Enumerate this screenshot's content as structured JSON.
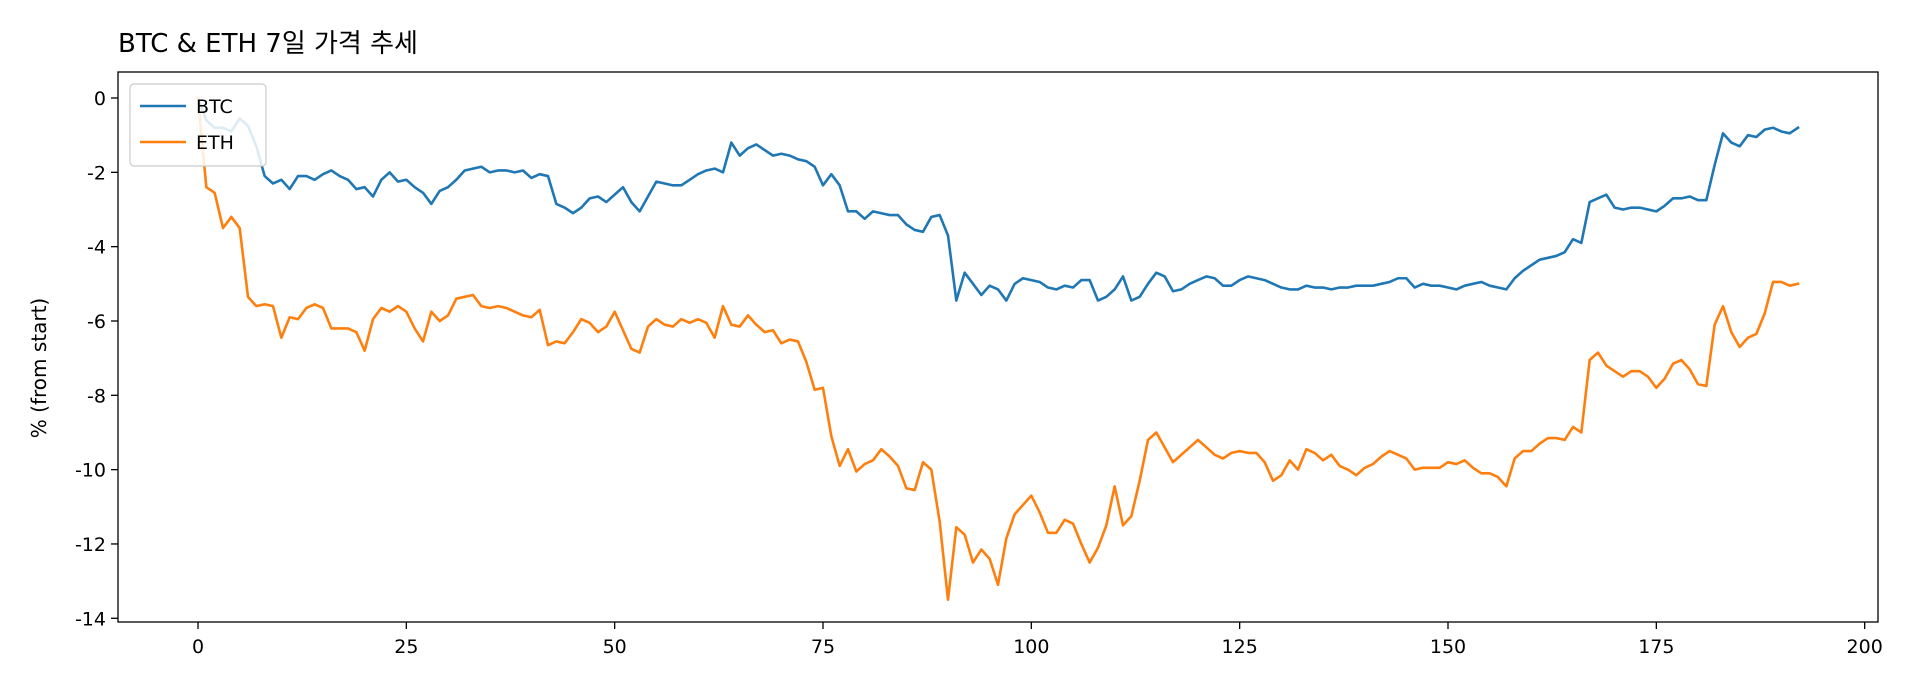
{
  "chart_data": {
    "type": "line",
    "title": "BTC & ETH 7일 가격 추세",
    "xlabel": "",
    "ylabel": "% (from start)",
    "xlim": [
      -9.6,
      201.6
    ],
    "ylim": [
      -14.1,
      0.7
    ],
    "x_ticks": [
      0,
      25,
      50,
      75,
      100,
      125,
      150,
      175,
      200
    ],
    "y_ticks": [
      0,
      -2,
      -4,
      -6,
      -8,
      -10,
      -12,
      -14
    ],
    "grid": false,
    "legend": "top-left",
    "series": [
      {
        "name": "BTC",
        "color": "#1f77b4",
        "values": [
          0,
          -0.6,
          -0.8,
          -0.8,
          -0.9,
          -0.55,
          -0.75,
          -1.3,
          -2.1,
          -2.3,
          -2.2,
          -2.45,
          -2.1,
          -2.1,
          -2.2,
          -2.05,
          -1.95,
          -2.1,
          -2.2,
          -2.45,
          -2.4,
          -2.65,
          -2.2,
          -2.0,
          -2.25,
          -2.2,
          -2.4,
          -2.55,
          -2.85,
          -2.5,
          -2.4,
          -2.2,
          -1.95,
          -1.9,
          -1.85,
          -2.0,
          -1.95,
          -1.95,
          -2.0,
          -1.95,
          -2.15,
          -2.05,
          -2.1,
          -2.85,
          -2.95,
          -3.1,
          -2.95,
          -2.7,
          -2.65,
          -2.8,
          -2.6,
          -2.4,
          -2.8,
          -3.05,
          -2.65,
          -2.25,
          -2.3,
          -2.35,
          -2.35,
          -2.2,
          -2.05,
          -1.95,
          -1.9,
          -2.0,
          -1.2,
          -1.55,
          -1.35,
          -1.25,
          -1.4,
          -1.55,
          -1.5,
          -1.55,
          -1.65,
          -1.7,
          -1.85,
          -2.35,
          -2.05,
          -2.35,
          -3.05,
          -3.05,
          -3.25,
          -3.05,
          -3.1,
          -3.15,
          -3.15,
          -3.4,
          -3.55,
          -3.6,
          -3.2,
          -3.15,
          -3.7,
          -5.45,
          -4.7,
          -5.0,
          -5.3,
          -5.05,
          -5.15,
          -5.45,
          -5.0,
          -4.85,
          -4.9,
          -4.95,
          -5.1,
          -5.15,
          -5.05,
          -5.1,
          -4.9,
          -4.9,
          -5.45,
          -5.35,
          -5.15,
          -4.8,
          -5.45,
          -5.35,
          -5.0,
          -4.7,
          -4.8,
          -5.2,
          -5.15,
          -5.0,
          -4.9,
          -4.8,
          -4.85,
          -5.05,
          -5.05,
          -4.9,
          -4.8,
          -4.85,
          -4.9,
          -5.0,
          -5.1,
          -5.15,
          -5.15,
          -5.05,
          -5.1,
          -5.1,
          -5.15,
          -5.1,
          -5.1,
          -5.05,
          -5.05,
          -5.05,
          -5.0,
          -4.95,
          -4.85,
          -4.85,
          -5.1,
          -5.0,
          -5.05,
          -5.05,
          -5.1,
          -5.15,
          -5.05,
          -5.0,
          -4.95,
          -5.05,
          -5.1,
          -5.15,
          -4.85,
          -4.65,
          -4.5,
          -4.35,
          -4.3,
          -4.25,
          -4.15,
          -3.8,
          -3.9,
          -2.8,
          -2.7,
          -2.6,
          -2.95,
          -3.0,
          -2.95,
          -2.95,
          -3.0,
          -3.05,
          -2.9,
          -2.7,
          -2.7,
          -2.65,
          -2.75,
          -2.75,
          -1.8,
          -0.95,
          -1.2,
          -1.3,
          -1.0,
          -1.05,
          -0.85,
          -0.8,
          -0.9,
          -0.95,
          -0.8
        ]
      },
      {
        "name": "ETH",
        "color": "#ff7f0e",
        "values": [
          0,
          -2.4,
          -2.55,
          -3.5,
          -3.2,
          -3.5,
          -5.35,
          -5.6,
          -5.55,
          -5.6,
          -6.45,
          -5.9,
          -5.95,
          -5.65,
          -5.55,
          -5.65,
          -6.2,
          -6.2,
          -6.2,
          -6.3,
          -6.8,
          -5.95,
          -5.65,
          -5.75,
          -5.6,
          -5.75,
          -6.2,
          -6.55,
          -5.75,
          -6.0,
          -5.85,
          -5.4,
          -5.35,
          -5.3,
          -5.6,
          -5.65,
          -5.6,
          -5.65,
          -5.75,
          -5.85,
          -5.9,
          -5.7,
          -6.65,
          -6.55,
          -6.6,
          -6.3,
          -5.95,
          -6.05,
          -6.3,
          -6.15,
          -5.75,
          -6.25,
          -6.75,
          -6.85,
          -6.15,
          -5.95,
          -6.1,
          -6.15,
          -5.95,
          -6.05,
          -5.95,
          -6.05,
          -6.45,
          -5.6,
          -6.1,
          -6.15,
          -5.85,
          -6.1,
          -6.3,
          -6.25,
          -6.6,
          -6.5,
          -6.55,
          -7.1,
          -7.85,
          -7.8,
          -9.1,
          -9.9,
          -9.45,
          -10.05,
          -9.85,
          -9.75,
          -9.45,
          -9.65,
          -9.9,
          -10.5,
          -10.55,
          -9.8,
          -10.0,
          -11.4,
          -13.5,
          -11.55,
          -11.75,
          -12.5,
          -12.15,
          -12.4,
          -13.1,
          -11.85,
          -11.2,
          -10.95,
          -10.7,
          -11.15,
          -11.7,
          -11.7,
          -11.35,
          -11.45,
          -12.0,
          -12.5,
          -12.1,
          -11.5,
          -10.45,
          -11.5,
          -11.25,
          -10.3,
          -9.2,
          -9.0,
          -9.4,
          -9.8,
          -9.6,
          -9.4,
          -9.2,
          -9.4,
          -9.6,
          -9.7,
          -9.55,
          -9.5,
          -9.55,
          -9.55,
          -9.8,
          -10.3,
          -10.15,
          -9.75,
          -10.0,
          -9.45,
          -9.55,
          -9.75,
          -9.6,
          -9.9,
          -10.0,
          -10.15,
          -9.95,
          -9.85,
          -9.65,
          -9.5,
          -9.6,
          -9.7,
          -10.0,
          -9.95,
          -9.95,
          -9.95,
          -9.8,
          -9.85,
          -9.75,
          -9.95,
          -10.1,
          -10.1,
          -10.2,
          -10.45,
          -9.7,
          -9.5,
          -9.5,
          -9.3,
          -9.15,
          -9.15,
          -9.2,
          -8.85,
          -9.0,
          -7.05,
          -6.85,
          -7.2,
          -7.35,
          -7.5,
          -7.35,
          -7.35,
          -7.5,
          -7.8,
          -7.55,
          -7.15,
          -7.05,
          -7.3,
          -7.7,
          -7.75,
          -6.1,
          -5.6,
          -6.3,
          -6.7,
          -6.45,
          -6.35,
          -5.8,
          -4.95,
          -4.95,
          -5.05,
          -5.0
        ]
      }
    ]
  }
}
